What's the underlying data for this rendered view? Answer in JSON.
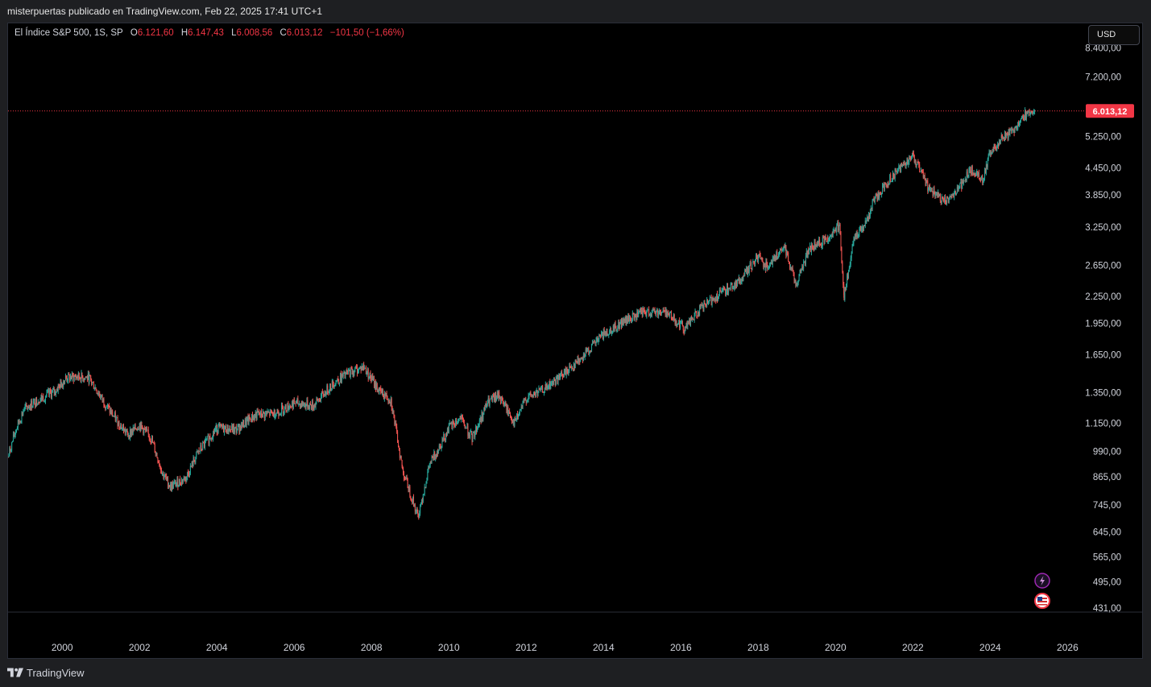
{
  "publish_line": "misterpuertas publicado en TradingView.com, Feb 22, 2025 17:41 UTC+1",
  "legend": {
    "symbol": "El Índice S&P 500, 1S, SP",
    "open_label": "O",
    "open_value": "6.121,60",
    "high_label": "H",
    "high_value": "6.147,43",
    "low_label": "L",
    "low_value": "6.008,56",
    "close_label": "C",
    "close_value": "6.013,12",
    "change": "−101,50 (−1,66%)"
  },
  "currency_button": "USD",
  "last_price_label": "6.013,12",
  "footer_brand": "TradingView",
  "colors": {
    "up": "#26a69a",
    "down": "#ef5350",
    "price_line": "#f23645",
    "background": "#000000",
    "axis_text": "#d1d4dc"
  },
  "icons": [
    "lightning-icon",
    "us-flag-icon",
    "tradingview-logo-icon"
  ],
  "chart_data": {
    "type": "candlestick",
    "title": "",
    "series": [
      {
        "name": "El Índice S&P 500",
        "x": [
          1998.6,
          1998.8,
          1999.0,
          1999.3,
          1999.6,
          1999.8,
          2000.1,
          2000.4,
          2000.7,
          2001.0,
          2001.3,
          2001.7,
          2002.0,
          2002.3,
          2002.6,
          2002.8,
          2003.2,
          2003.5,
          2004.0,
          2004.5,
          2005.0,
          2005.5,
          2006.0,
          2006.5,
          2007.0,
          2007.4,
          2007.8,
          2008.2,
          2008.5,
          2008.8,
          2009.2,
          2009.5,
          2010.0,
          2010.3,
          2010.6,
          2011.0,
          2011.3,
          2011.7,
          2012.0,
          2012.5,
          2013.0,
          2013.5,
          2014.0,
          2014.5,
          2015.0,
          2015.6,
          2016.1,
          2016.5,
          2017.0,
          2017.5,
          2018.0,
          2018.2,
          2018.7,
          2018.98,
          2019.3,
          2019.8,
          2020.1,
          2020.22,
          2020.5,
          2020.8,
          2021.0,
          2021.5,
          2022.0,
          2022.4,
          2022.8,
          2023.2,
          2023.5,
          2023.8,
          2024.0,
          2024.3,
          2024.6,
          2024.9,
          2025.15
        ],
        "y": [
          960,
          1110,
          1230,
          1290,
          1330,
          1360,
          1460,
          1470,
          1460,
          1320,
          1200,
          1080,
          1140,
          1060,
          880,
          820,
          860,
          980,
          1120,
          1110,
          1200,
          1210,
          1280,
          1260,
          1420,
          1500,
          1550,
          1360,
          1300,
          900,
          700,
          920,
          1120,
          1180,
          1060,
          1280,
          1330,
          1150,
          1310,
          1380,
          1500,
          1650,
          1840,
          1960,
          2060,
          2080,
          1900,
          2100,
          2280,
          2430,
          2780,
          2650,
          2900,
          2400,
          2880,
          3060,
          3300,
          2250,
          3100,
          3350,
          3750,
          4300,
          4750,
          4000,
          3700,
          4000,
          4400,
          4200,
          4800,
          5200,
          5450,
          5900,
          6013
        ]
      }
    ],
    "xlabel": "",
    "ylabel": "",
    "x_ticks": [
      "2000",
      "2002",
      "2004",
      "2006",
      "2008",
      "2010",
      "2012",
      "2014",
      "2016",
      "2018",
      "2020",
      "2022",
      "2024",
      "2026"
    ],
    "y_ticks": [
      "8.400,00",
      "7.200,00",
      "5.250,00",
      "4.450,00",
      "3.850,00",
      "3.250,00",
      "2.650,00",
      "2.250,00",
      "1.950,00",
      "1.650,00",
      "1.350,00",
      "1.150,00",
      "990,00",
      "865,00",
      "745,00",
      "645,00",
      "565,00",
      "495,00",
      "431,00"
    ],
    "y_tick_values": [
      8400,
      7200,
      5250,
      4450,
      3850,
      3250,
      2650,
      2250,
      1950,
      1650,
      1350,
      1150,
      990,
      865,
      745,
      645,
      565,
      495,
      431
    ],
    "x_range": [
      1998.6,
      2026.2
    ],
    "y_scale": "log",
    "last_price": 6013.12,
    "grid": false
  }
}
